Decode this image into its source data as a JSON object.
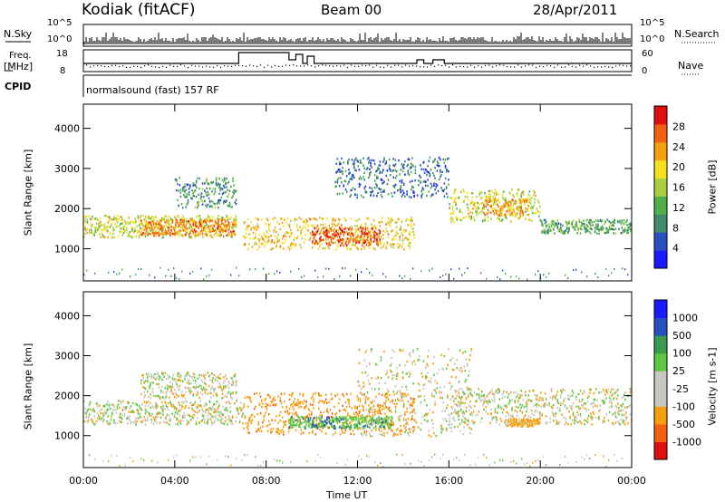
{
  "header": {
    "site": "Kodiak (fitACF)",
    "beam": "Beam 00",
    "date": "28/Apr/2011"
  },
  "strip_labels": {
    "nsky": "N.Sky",
    "nsearch": "N.Search",
    "freq": "Freq.",
    "freq_unit": "[MHz]",
    "nave": "Nave",
    "cpid": "CPID",
    "cpid_value": "normalsound (fast) 157 RF"
  },
  "strip_ticks": {
    "noise_left": [
      "10^5",
      "10^0"
    ],
    "noise_right": [
      "10^5",
      "10^0"
    ],
    "freq_left": [
      "18",
      "8"
    ],
    "nave_right": [
      "60",
      "0"
    ]
  },
  "colors": {
    "frame": "#000000",
    "power_scale": [
      "#1a1aff",
      "#2a4fc0",
      "#3f8a6a",
      "#4fb04a",
      "#a8d040",
      "#f5e020",
      "#f5a010",
      "#f56010",
      "#e01010"
    ],
    "velocity_scale": [
      "#e01010",
      "#f56010",
      "#f5a010",
      "#c8c8c0",
      "#c8c8c0",
      "#60c840",
      "#3a9a50",
      "#2a4fc0",
      "#1a1aff"
    ]
  },
  "chart_data": [
    {
      "type": "heatmap",
      "name": "power",
      "ylabel": "Slant Range [km]",
      "yticks": [
        "1000",
        "2000",
        "3000",
        "4000"
      ],
      "ylim": [
        200,
        4600
      ],
      "colorbar_label": "Power [dB]",
      "colorbar_ticks": [
        "4",
        "8",
        "12",
        "16",
        "20",
        "24",
        "28"
      ],
      "features": [
        {
          "t0": 0.0,
          "t1": 6.7,
          "r0": 1300,
          "r1": 1850,
          "level": 0.55
        },
        {
          "t0": 2.5,
          "t1": 6.7,
          "r0": 1350,
          "r1": 1750,
          "level": 0.8
        },
        {
          "t0": 4.0,
          "t1": 6.7,
          "r0": 2050,
          "r1": 2800,
          "level": 0.3
        },
        {
          "t0": 7.0,
          "t1": 14.5,
          "r0": 1000,
          "r1": 1800,
          "level": 0.65
        },
        {
          "t0": 10.0,
          "t1": 13.0,
          "r0": 1100,
          "r1": 1550,
          "level": 0.9
        },
        {
          "t0": 11.0,
          "t1": 16.0,
          "r0": 2300,
          "r1": 3300,
          "level": 0.2
        },
        {
          "t0": 16.0,
          "t1": 20.0,
          "r0": 1700,
          "r1": 2500,
          "level": 0.55
        },
        {
          "t0": 17.5,
          "t1": 19.5,
          "r0": 1850,
          "r1": 2250,
          "level": 0.75
        },
        {
          "t0": 20.0,
          "t1": 24.0,
          "r0": 1400,
          "r1": 1750,
          "level": 0.35
        }
      ]
    },
    {
      "type": "heatmap",
      "name": "velocity",
      "ylabel": "Slant Range [km]",
      "yticks": [
        "1000",
        "2000",
        "3000",
        "4000"
      ],
      "ylim": [
        200,
        4600
      ],
      "colorbar_label": "Velocity [m s-1]",
      "colorbar_ticks": [
        "-1000",
        "-500",
        "-100",
        "-25",
        "25",
        "100",
        "500",
        "1000"
      ],
      "features": [
        {
          "t0": 0.0,
          "t1": 7.0,
          "r0": 1300,
          "r1": 1900,
          "vel": 0
        },
        {
          "t0": 2.5,
          "t1": 6.7,
          "r0": 1950,
          "r1": 2600,
          "vel": 0
        },
        {
          "t0": 7.0,
          "t1": 14.5,
          "r0": 1050,
          "r1": 2100,
          "vel": -300
        },
        {
          "t0": 9.0,
          "t1": 13.5,
          "r0": 1200,
          "r1": 1500,
          "vel": 300
        },
        {
          "t0": 12.0,
          "t1": 17.0,
          "r0": 1000,
          "r1": 3200,
          "vel": 0
        },
        {
          "t0": 16.0,
          "t1": 24.0,
          "r0": 1300,
          "r1": 2200,
          "vel": 0
        },
        {
          "t0": 18.5,
          "t1": 20.0,
          "r0": 1250,
          "r1": 1450,
          "vel": -200
        }
      ]
    }
  ],
  "xaxis": {
    "label": "Time UT",
    "ticks": [
      "00:00",
      "04:00",
      "08:00",
      "12:00",
      "16:00",
      "20:00",
      "00:00"
    ],
    "range_hours": [
      0,
      24
    ]
  }
}
